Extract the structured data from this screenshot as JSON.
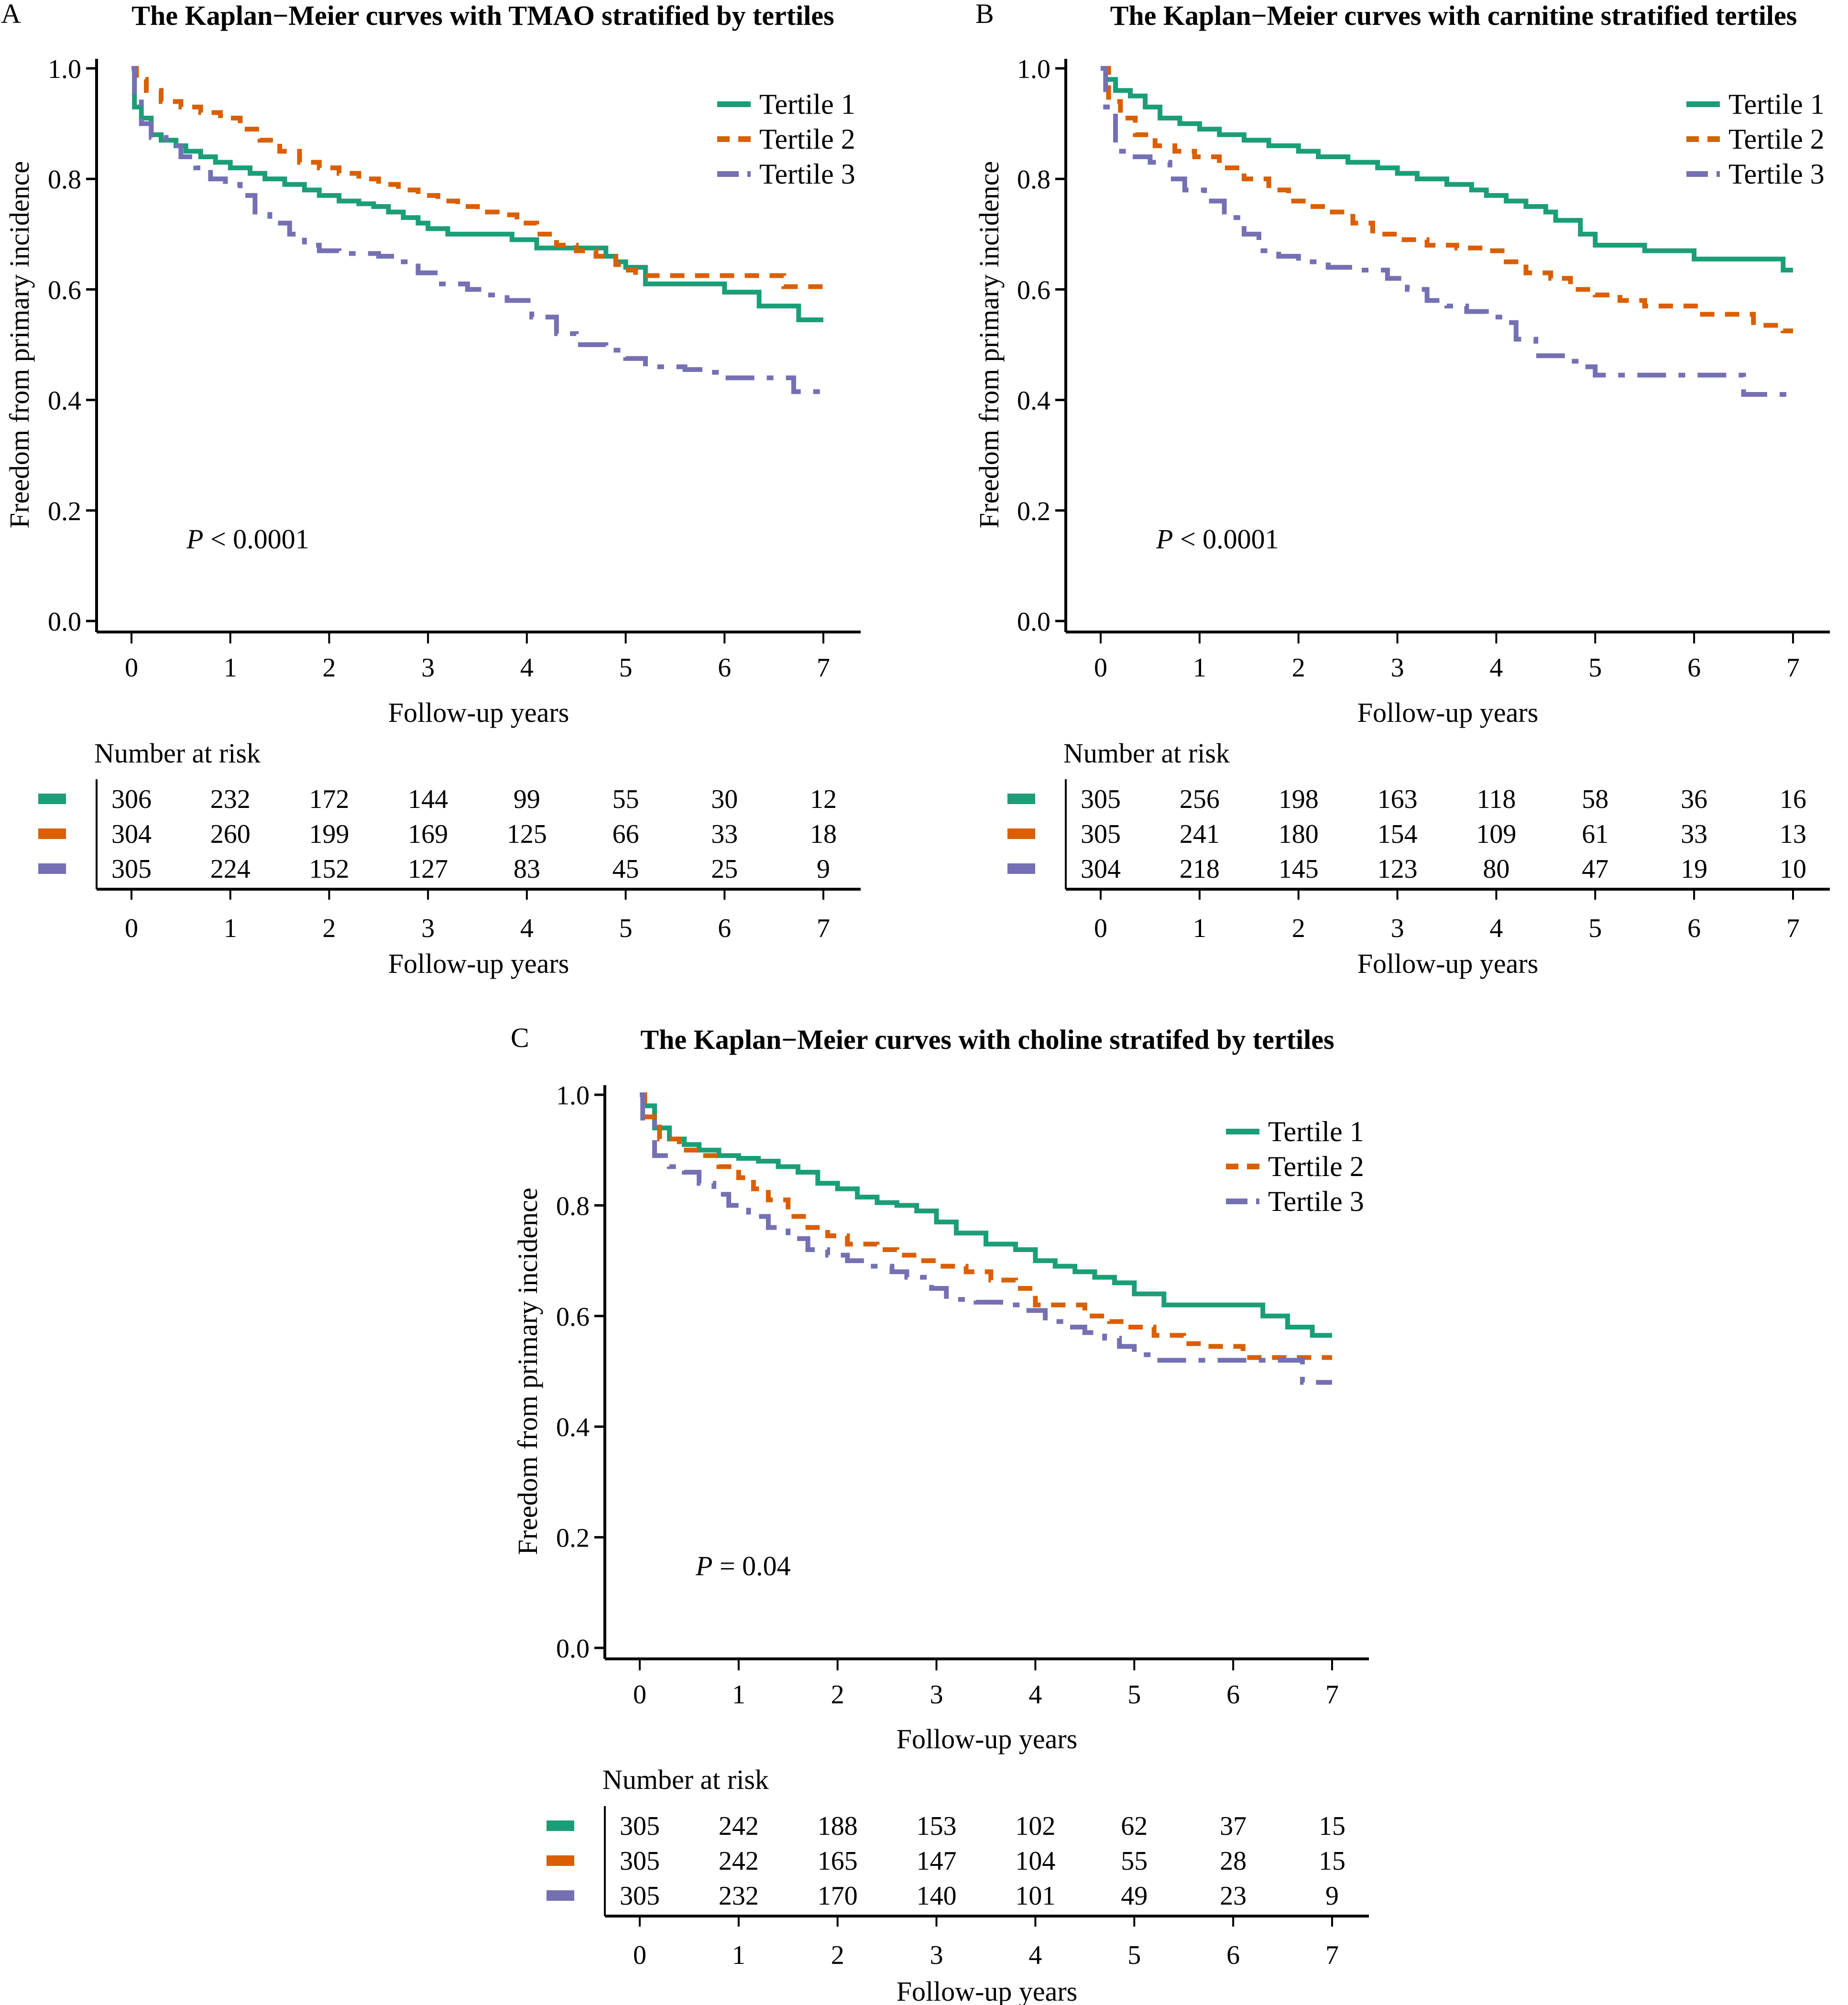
{
  "figure": {
    "y_axis_label": "Freedom from primary incidence",
    "x_axis_label": "Follow-up years",
    "risk_table_title": "Number at risk",
    "legend_labels": [
      "Tertile 1",
      "Tertile 2",
      "Tertile 3"
    ],
    "colors": {
      "tertile1": "#1B9E77",
      "tertile2": "#D95F02",
      "tertile3": "#7570B3"
    }
  },
  "chart_data": [
    {
      "panel": "A",
      "type": "line",
      "subtype": "kaplan-meier-step",
      "title": "The Kaplan−Meier curves with TMAO stratified by tertiles",
      "xlabel": "Follow-up years",
      "ylabel": "Freedom from primary incidence",
      "xlim": [
        0,
        7
      ],
      "ylim": [
        0,
        1
      ],
      "xticks": [
        0,
        1,
        2,
        3,
        4,
        5,
        6,
        7
      ],
      "yticks": [
        "0.0",
        "0.2",
        "0.4",
        "0.6",
        "0.8",
        "1.0"
      ],
      "grid": false,
      "legend_position": "top-right",
      "annotation": {
        "prefix": "P",
        "text": " < 0.0001"
      },
      "series": [
        {
          "name": "Tertile 1",
          "style": "solid",
          "x": [
            0,
            0.03,
            0.1,
            0.2,
            0.3,
            0.45,
            0.55,
            0.7,
            0.85,
            1.0,
            1.2,
            1.35,
            1.55,
            1.75,
            1.9,
            2.1,
            2.3,
            2.45,
            2.6,
            2.75,
            2.9,
            3.0,
            3.2,
            3.5,
            3.85,
            4.1,
            4.8,
            4.9,
            5.0,
            5.2,
            5.5,
            6.0,
            6.35,
            6.75,
            7.0
          ],
          "y": [
            1.0,
            0.93,
            0.91,
            0.88,
            0.87,
            0.86,
            0.85,
            0.84,
            0.83,
            0.82,
            0.81,
            0.8,
            0.79,
            0.78,
            0.77,
            0.76,
            0.755,
            0.75,
            0.74,
            0.73,
            0.72,
            0.71,
            0.7,
            0.7,
            0.69,
            0.675,
            0.66,
            0.65,
            0.64,
            0.61,
            0.61,
            0.595,
            0.57,
            0.545,
            0.545
          ]
        },
        {
          "name": "Tertile 2",
          "style": "dashed",
          "x": [
            0,
            0.05,
            0.15,
            0.3,
            0.5,
            0.7,
            0.9,
            1.1,
            1.3,
            1.5,
            1.7,
            1.9,
            2.1,
            2.3,
            2.5,
            2.7,
            2.9,
            3.1,
            3.3,
            3.5,
            3.7,
            3.9,
            4.1,
            4.3,
            4.5,
            4.7,
            4.9,
            5.0,
            5.1,
            6.0,
            6.6,
            7.0
          ],
          "y": [
            1.0,
            0.98,
            0.96,
            0.94,
            0.93,
            0.92,
            0.91,
            0.89,
            0.87,
            0.85,
            0.83,
            0.82,
            0.81,
            0.8,
            0.79,
            0.78,
            0.77,
            0.76,
            0.75,
            0.74,
            0.735,
            0.72,
            0.7,
            0.68,
            0.67,
            0.66,
            0.645,
            0.635,
            0.625,
            0.625,
            0.605,
            0.605
          ]
        },
        {
          "name": "Tertile 3",
          "style": "longdash",
          "x": [
            0,
            0.03,
            0.1,
            0.2,
            0.35,
            0.5,
            0.65,
            0.8,
            0.95,
            1.1,
            1.25,
            1.4,
            1.6,
            1.75,
            1.9,
            2.1,
            2.5,
            2.7,
            2.9,
            3.1,
            3.4,
            3.6,
            3.8,
            4.05,
            4.3,
            4.5,
            4.8,
            5.0,
            5.2,
            5.6,
            5.8,
            6.0,
            6.7,
            7.0
          ],
          "y": [
            1.0,
            0.95,
            0.9,
            0.875,
            0.86,
            0.84,
            0.82,
            0.8,
            0.79,
            0.77,
            0.74,
            0.72,
            0.7,
            0.68,
            0.67,
            0.665,
            0.66,
            0.65,
            0.63,
            0.61,
            0.6,
            0.59,
            0.58,
            0.55,
            0.52,
            0.5,
            0.49,
            0.475,
            0.46,
            0.455,
            0.45,
            0.44,
            0.415,
            0.415
          ]
        }
      ],
      "risk_table": {
        "title": "Number at risk",
        "times": [
          0,
          1,
          2,
          3,
          4,
          5,
          6,
          7
        ],
        "rows": [
          {
            "name": "Tertile 1",
            "values": [
              306,
              232,
              172,
              144,
              99,
              55,
              30,
              12
            ]
          },
          {
            "name": "Tertile 2",
            "values": [
              304,
              260,
              199,
              169,
              125,
              66,
              33,
              18
            ]
          },
          {
            "name": "Tertile 3",
            "values": [
              305,
              224,
              152,
              127,
              83,
              45,
              25,
              9
            ]
          }
        ],
        "xlabel": "Follow-up years"
      }
    },
    {
      "panel": "B",
      "type": "line",
      "subtype": "kaplan-meier-step",
      "title": "The Kaplan−Meier curves with carnitine stratified tertiles",
      "xlabel": "Follow-up years",
      "ylabel": "Freedom from primary incidence",
      "xlim": [
        0,
        7
      ],
      "ylim": [
        0,
        1
      ],
      "xticks": [
        0,
        1,
        2,
        3,
        4,
        5,
        6,
        7
      ],
      "yticks": [
        "0.0",
        "0.2",
        "0.4",
        "0.6",
        "0.8",
        "1.0"
      ],
      "grid": false,
      "legend_position": "top-right",
      "annotation": {
        "prefix": "P",
        "text": " < 0.0001"
      },
      "series": [
        {
          "name": "Tertile 1",
          "style": "solid",
          "x": [
            0,
            0.05,
            0.15,
            0.3,
            0.45,
            0.6,
            0.8,
            1.0,
            1.2,
            1.45,
            1.7,
            2.0,
            2.2,
            2.5,
            2.8,
            3.0,
            3.2,
            3.5,
            3.75,
            3.9,
            4.1,
            4.3,
            4.5,
            4.6,
            4.85,
            5.0,
            5.5,
            6.0,
            6.9,
            7.0
          ],
          "y": [
            1.0,
            0.98,
            0.96,
            0.95,
            0.93,
            0.91,
            0.9,
            0.89,
            0.88,
            0.87,
            0.86,
            0.85,
            0.84,
            0.83,
            0.82,
            0.81,
            0.8,
            0.79,
            0.78,
            0.77,
            0.76,
            0.75,
            0.74,
            0.725,
            0.7,
            0.68,
            0.67,
            0.655,
            0.635,
            0.635
          ]
        },
        {
          "name": "Tertile 2",
          "style": "dashed",
          "x": [
            0,
            0.08,
            0.2,
            0.35,
            0.55,
            0.75,
            0.95,
            1.2,
            1.45,
            1.7,
            1.9,
            2.1,
            2.3,
            2.55,
            2.75,
            3.0,
            3.3,
            3.6,
            3.9,
            4.1,
            4.3,
            4.55,
            4.75,
            5.0,
            5.25,
            5.5,
            6.05,
            6.6,
            6.9,
            7.0
          ],
          "y": [
            1.0,
            0.94,
            0.91,
            0.88,
            0.86,
            0.85,
            0.84,
            0.82,
            0.8,
            0.78,
            0.76,
            0.75,
            0.74,
            0.72,
            0.7,
            0.69,
            0.68,
            0.675,
            0.67,
            0.65,
            0.63,
            0.62,
            0.6,
            0.59,
            0.58,
            0.57,
            0.555,
            0.535,
            0.525,
            0.525
          ]
        },
        {
          "name": "Tertile 3",
          "style": "longdash",
          "x": [
            0,
            0.05,
            0.15,
            0.3,
            0.5,
            0.7,
            0.85,
            1.05,
            1.25,
            1.45,
            1.6,
            1.8,
            2.0,
            2.3,
            2.6,
            2.9,
            3.1,
            3.3,
            3.5,
            3.7,
            3.9,
            4.1,
            4.2,
            4.4,
            4.7,
            4.9,
            5.0,
            6.5,
            7.0
          ],
          "y": [
            1.0,
            0.93,
            0.85,
            0.84,
            0.83,
            0.8,
            0.78,
            0.76,
            0.73,
            0.7,
            0.67,
            0.66,
            0.65,
            0.64,
            0.635,
            0.62,
            0.6,
            0.58,
            0.57,
            0.56,
            0.55,
            0.54,
            0.51,
            0.48,
            0.47,
            0.46,
            0.445,
            0.41,
            0.41
          ]
        }
      ],
      "risk_table": {
        "title": "Number at risk",
        "times": [
          0,
          1,
          2,
          3,
          4,
          5,
          6,
          7
        ],
        "rows": [
          {
            "name": "Tertile 1",
            "values": [
              305,
              256,
              198,
              163,
              118,
              58,
              36,
              16
            ]
          },
          {
            "name": "Tertile 2",
            "values": [
              305,
              241,
              180,
              154,
              109,
              61,
              33,
              13
            ]
          },
          {
            "name": "Tertile 3",
            "values": [
              304,
              218,
              145,
              123,
              80,
              47,
              19,
              10
            ]
          }
        ],
        "xlabel": "Follow-up years"
      }
    },
    {
      "panel": "C",
      "type": "line",
      "subtype": "kaplan-meier-step",
      "title": "The Kaplan−Meier curves with choline stratifed by tertiles",
      "xlabel": "Follow-up years",
      "ylabel": "Freedom from primary incidence",
      "xlim": [
        0,
        7
      ],
      "ylim": [
        0,
        1
      ],
      "xticks": [
        0,
        1,
        2,
        3,
        4,
        5,
        6,
        7
      ],
      "yticks": [
        "0.0",
        "0.2",
        "0.4",
        "0.6",
        "0.8",
        "1.0"
      ],
      "grid": false,
      "legend_position": "top-right",
      "annotation": {
        "prefix": "P",
        "text": " = 0.04"
      },
      "series": [
        {
          "name": "Tertile 1",
          "style": "solid",
          "x": [
            0,
            0.05,
            0.15,
            0.3,
            0.45,
            0.6,
            0.8,
            1.0,
            1.2,
            1.4,
            1.6,
            1.8,
            2.0,
            2.2,
            2.4,
            2.6,
            2.8,
            3.0,
            3.2,
            3.5,
            3.8,
            4.0,
            4.2,
            4.4,
            4.6,
            4.8,
            5.0,
            5.3,
            6.3,
            6.55,
            6.8,
            7.0
          ],
          "y": [
            1.0,
            0.98,
            0.94,
            0.92,
            0.91,
            0.9,
            0.89,
            0.885,
            0.88,
            0.87,
            0.86,
            0.84,
            0.83,
            0.815,
            0.805,
            0.8,
            0.79,
            0.77,
            0.75,
            0.73,
            0.72,
            0.7,
            0.69,
            0.68,
            0.67,
            0.66,
            0.64,
            0.62,
            0.6,
            0.58,
            0.565,
            0.565
          ]
        },
        {
          "name": "Tertile 2",
          "style": "dashed",
          "x": [
            0,
            0.05,
            0.2,
            0.4,
            0.6,
            0.8,
            1.0,
            1.15,
            1.3,
            1.5,
            1.7,
            1.9,
            2.1,
            2.4,
            2.6,
            2.8,
            3.0,
            3.3,
            3.55,
            3.8,
            4.0,
            4.5,
            4.75,
            4.9,
            5.2,
            5.5,
            5.7,
            6.1,
            7.0
          ],
          "y": [
            1.0,
            0.96,
            0.92,
            0.9,
            0.89,
            0.87,
            0.85,
            0.83,
            0.81,
            0.78,
            0.76,
            0.745,
            0.73,
            0.72,
            0.71,
            0.7,
            0.69,
            0.68,
            0.665,
            0.65,
            0.62,
            0.6,
            0.59,
            0.58,
            0.565,
            0.55,
            0.545,
            0.525,
            0.525
          ]
        },
        {
          "name": "Tertile 3",
          "style": "longdash",
          "x": [
            0,
            0.03,
            0.15,
            0.3,
            0.45,
            0.6,
            0.75,
            0.9,
            1.1,
            1.3,
            1.5,
            1.7,
            1.9,
            2.1,
            2.3,
            2.55,
            2.7,
            2.95,
            3.1,
            3.4,
            3.65,
            3.85,
            4.1,
            4.3,
            4.5,
            4.7,
            4.85,
            5.0,
            5.2,
            6.7,
            7.0
          ],
          "y": [
            1.0,
            0.95,
            0.89,
            0.87,
            0.86,
            0.84,
            0.82,
            0.8,
            0.78,
            0.76,
            0.74,
            0.72,
            0.71,
            0.7,
            0.69,
            0.68,
            0.67,
            0.65,
            0.63,
            0.625,
            0.62,
            0.61,
            0.59,
            0.58,
            0.57,
            0.56,
            0.545,
            0.53,
            0.52,
            0.48,
            0.48
          ]
        }
      ],
      "risk_table": {
        "title": "Number at risk",
        "times": [
          0,
          1,
          2,
          3,
          4,
          5,
          6,
          7
        ],
        "rows": [
          {
            "name": "Tertile 1",
            "values": [
              305,
              242,
              188,
              153,
              102,
              62,
              37,
              15
            ]
          },
          {
            "name": "Tertile 2",
            "values": [
              305,
              242,
              165,
              147,
              104,
              55,
              28,
              15
            ]
          },
          {
            "name": "Tertile 3",
            "values": [
              305,
              232,
              170,
              140,
              101,
              49,
              23,
              9
            ]
          }
        ],
        "xlabel": "Follow-up years"
      }
    }
  ]
}
